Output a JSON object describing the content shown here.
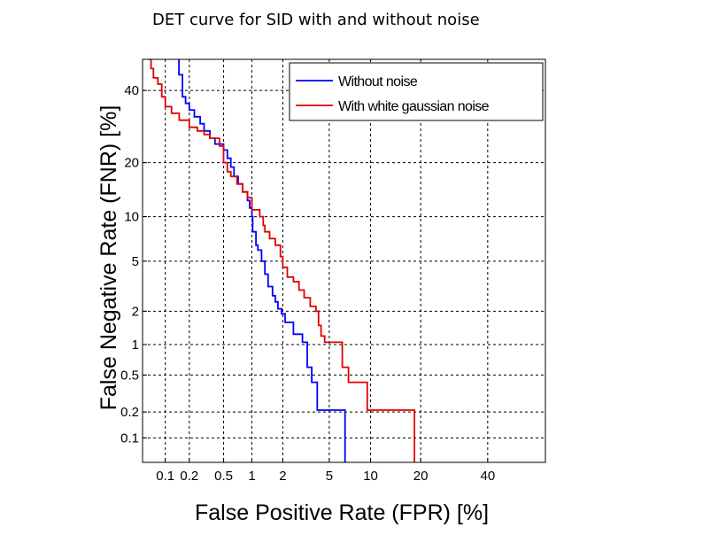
{
  "chart_data": {
    "type": "line",
    "title": "DET curve for SID with and without noise",
    "xlabel": "False Positive Rate (FPR) [%]",
    "ylabel": "False Negative Rate (FNR) [%]",
    "x_scale": "probit",
    "y_scale": "probit",
    "xlim": [
      0.05,
      60
    ],
    "ylim": [
      0.05,
      50
    ],
    "x_ticks": [
      0.1,
      0.2,
      0.5,
      1,
      2,
      5,
      10,
      20,
      40
    ],
    "x_tick_labels": [
      "0.1",
      "0.2",
      "0.5",
      "1",
      "2",
      "5",
      "10",
      "20",
      "40"
    ],
    "y_ticks": [
      0.1,
      0.2,
      0.5,
      1,
      2,
      5,
      10,
      20,
      40
    ],
    "y_tick_labels": [
      "0.1",
      "0.2",
      "0.5",
      "1",
      "2",
      "5",
      "10",
      "20",
      "40"
    ],
    "grid": true,
    "legend_position": "top-right",
    "series": [
      {
        "name": "Without noise",
        "color": "#0000ff",
        "points": [
          [
            0.149,
            50
          ],
          [
            0.149,
            45
          ],
          [
            0.165,
            45
          ],
          [
            0.165,
            38
          ],
          [
            0.18,
            38
          ],
          [
            0.18,
            36
          ],
          [
            0.2,
            36
          ],
          [
            0.2,
            34
          ],
          [
            0.23,
            34
          ],
          [
            0.23,
            32
          ],
          [
            0.27,
            32
          ],
          [
            0.27,
            30
          ],
          [
            0.3,
            30
          ],
          [
            0.3,
            28
          ],
          [
            0.35,
            28
          ],
          [
            0.35,
            26
          ],
          [
            0.4,
            26
          ],
          [
            0.4,
            24.5
          ],
          [
            0.5,
            24.5
          ],
          [
            0.5,
            23
          ],
          [
            0.55,
            23
          ],
          [
            0.55,
            21
          ],
          [
            0.6,
            21
          ],
          [
            0.6,
            19
          ],
          [
            0.65,
            19
          ],
          [
            0.65,
            17
          ],
          [
            0.72,
            17
          ],
          [
            0.72,
            15.5
          ],
          [
            0.8,
            15.5
          ],
          [
            0.8,
            14
          ],
          [
            0.9,
            14
          ],
          [
            0.9,
            12.5
          ],
          [
            0.95,
            12.5
          ],
          [
            0.95,
            11.3
          ],
          [
            1.0,
            11.3
          ],
          [
            1.0,
            10
          ],
          [
            1.02,
            10
          ],
          [
            1.02,
            8
          ],
          [
            1.1,
            8
          ],
          [
            1.1,
            6.5
          ],
          [
            1.15,
            6.5
          ],
          [
            1.15,
            6
          ],
          [
            1.25,
            6
          ],
          [
            1.25,
            5
          ],
          [
            1.35,
            5
          ],
          [
            1.35,
            4
          ],
          [
            1.45,
            4
          ],
          [
            1.45,
            3.2
          ],
          [
            1.6,
            3.2
          ],
          [
            1.6,
            2.7
          ],
          [
            1.7,
            2.7
          ],
          [
            1.7,
            2.4
          ],
          [
            1.8,
            2.4
          ],
          [
            1.8,
            2.1
          ],
          [
            1.95,
            2.1
          ],
          [
            1.95,
            1.9
          ],
          [
            2.1,
            1.9
          ],
          [
            2.1,
            1.6
          ],
          [
            2.5,
            1.6
          ],
          [
            2.5,
            1.25
          ],
          [
            3.0,
            1.25
          ],
          [
            3.0,
            1.05
          ],
          [
            3.3,
            1.05
          ],
          [
            3.3,
            0.6
          ],
          [
            3.6,
            0.6
          ],
          [
            3.6,
            0.42
          ],
          [
            4.0,
            0.42
          ],
          [
            4.0,
            0.21
          ],
          [
            6.6,
            0.21
          ],
          [
            6.6,
            0.05
          ]
        ]
      },
      {
        "name": "With white gaussian noise",
        "color": "#e00000",
        "points": [
          [
            0.06,
            50
          ],
          [
            0.065,
            50
          ],
          [
            0.065,
            47
          ],
          [
            0.07,
            47
          ],
          [
            0.07,
            44
          ],
          [
            0.08,
            44
          ],
          [
            0.08,
            42
          ],
          [
            0.09,
            42
          ],
          [
            0.09,
            38
          ],
          [
            0.1,
            38
          ],
          [
            0.1,
            35
          ],
          [
            0.12,
            35
          ],
          [
            0.12,
            33
          ],
          [
            0.15,
            33
          ],
          [
            0.15,
            31
          ],
          [
            0.2,
            31
          ],
          [
            0.2,
            29
          ],
          [
            0.25,
            29
          ],
          [
            0.25,
            28
          ],
          [
            0.3,
            28
          ],
          [
            0.3,
            27
          ],
          [
            0.35,
            27
          ],
          [
            0.35,
            26
          ],
          [
            0.45,
            26
          ],
          [
            0.45,
            24
          ],
          [
            0.5,
            24
          ],
          [
            0.5,
            20
          ],
          [
            0.55,
            20
          ],
          [
            0.55,
            18
          ],
          [
            0.6,
            18
          ],
          [
            0.6,
            17
          ],
          [
            0.7,
            17
          ],
          [
            0.7,
            15.5
          ],
          [
            0.8,
            15.5
          ],
          [
            0.8,
            14
          ],
          [
            0.9,
            14
          ],
          [
            0.9,
            13
          ],
          [
            1.0,
            13
          ],
          [
            1.0,
            11
          ],
          [
            1.2,
            11
          ],
          [
            1.2,
            10
          ],
          [
            1.3,
            10
          ],
          [
            1.3,
            8.8
          ],
          [
            1.35,
            8.8
          ],
          [
            1.35,
            8
          ],
          [
            1.5,
            8
          ],
          [
            1.5,
            7.2
          ],
          [
            1.7,
            7.2
          ],
          [
            1.7,
            6.5
          ],
          [
            1.9,
            6.5
          ],
          [
            1.9,
            5.4
          ],
          [
            2.0,
            5.4
          ],
          [
            2.0,
            4.5
          ],
          [
            2.2,
            4.5
          ],
          [
            2.2,
            3.8
          ],
          [
            2.5,
            3.8
          ],
          [
            2.5,
            3.5
          ],
          [
            2.8,
            3.5
          ],
          [
            2.8,
            3.0
          ],
          [
            3.1,
            3.0
          ],
          [
            3.1,
            2.6
          ],
          [
            3.5,
            2.6
          ],
          [
            3.5,
            2.2
          ],
          [
            3.9,
            2.2
          ],
          [
            3.9,
            2.0
          ],
          [
            4.1,
            2.0
          ],
          [
            4.1,
            1.5
          ],
          [
            4.3,
            1.5
          ],
          [
            4.3,
            1.2
          ],
          [
            4.6,
            1.2
          ],
          [
            4.6,
            1.05
          ],
          [
            6.3,
            1.05
          ],
          [
            6.3,
            0.6
          ],
          [
            7.0,
            0.6
          ],
          [
            7.0,
            0.42
          ],
          [
            9.5,
            0.42
          ],
          [
            9.5,
            0.21
          ],
          [
            18.5,
            0.21
          ],
          [
            18.5,
            0.05
          ]
        ]
      }
    ]
  }
}
